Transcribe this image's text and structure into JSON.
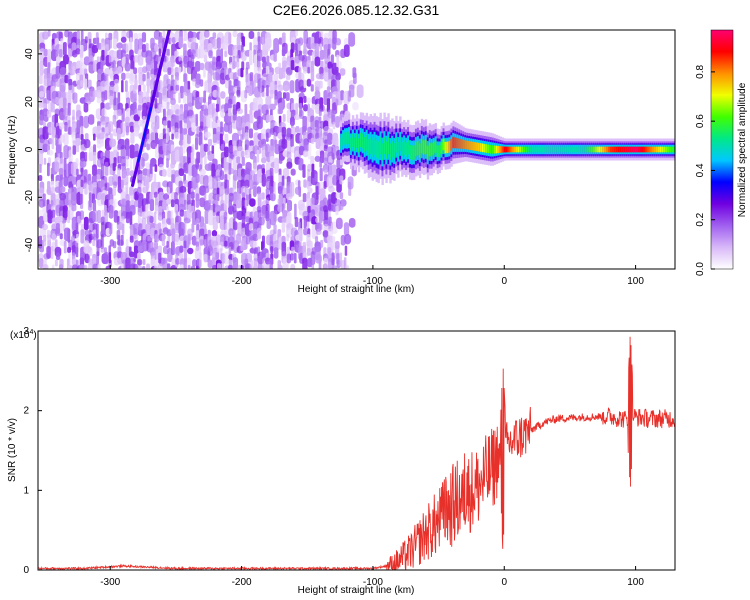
{
  "title": "C2E6.2026.085.12.32.G31",
  "colorbar": {
    "label": "Normalized spectral amplitude",
    "ticks": [
      "0.0",
      "0.2",
      "0.4",
      "0.6",
      "0.8"
    ],
    "tick_values": [
      0.0,
      0.2,
      0.4,
      0.6,
      0.8
    ],
    "range": [
      0,
      0.97
    ],
    "colors": [
      "#ffffff",
      "#d8b8f8",
      "#a060f0",
      "#7000e0",
      "#0000ff",
      "#00c8ff",
      "#00e888",
      "#40ff00",
      "#f0ff00",
      "#ff9000",
      "#ff0000",
      "#ff0070"
    ]
  },
  "chart_data": [
    {
      "type": "heatmap",
      "title": "C2E6.2026.085.12.32.G31",
      "xlabel": "Height of straight line (km)",
      "ylabel": "Frequency (Hz)",
      "xlim": [
        -355,
        130
      ],
      "ylim": [
        -50,
        50
      ],
      "xticks": [
        -300,
        -200,
        -100,
        0,
        100
      ],
      "xtick_labels": [
        "-300",
        "-200",
        "-100",
        "0",
        "100"
      ],
      "yticks": [
        -40,
        -20,
        0,
        20,
        40
      ],
      "ytick_labels": [
        "-40",
        "-20",
        "0",
        "20",
        "40"
      ],
      "noise_region_x": [
        -355,
        -110
      ],
      "diagonal_feature": {
        "x": [
          -283,
          -255
        ],
        "y": [
          -15,
          50
        ]
      },
      "band": {
        "x": [
          -125,
          -110,
          -100,
          -90,
          -80,
          -70,
          -60,
          -50,
          -40,
          -30,
          -20,
          -10,
          0,
          20,
          40,
          60,
          80,
          100,
          130
        ],
        "center_hz": [
          4,
          3,
          1,
          0,
          1,
          0,
          0,
          0,
          3,
          2,
          1,
          0,
          0,
          0,
          0,
          0,
          0,
          0,
          0
        ],
        "half_width_hz": [
          4,
          5,
          6,
          6,
          5,
          5,
          5,
          4,
          4,
          3,
          3,
          3,
          2,
          2,
          2,
          2,
          2,
          2,
          2
        ],
        "peak_amplitude": [
          0.5,
          0.55,
          0.5,
          0.55,
          0.5,
          0.55,
          0.6,
          0.55,
          0.85,
          0.8,
          0.75,
          0.6,
          0.9,
          0.5,
          0.5,
          0.5,
          0.85,
          0.95,
          0.55
        ]
      }
    },
    {
      "type": "line",
      "xlabel": "Height of straight line (km)",
      "ylabel": "SNR (10 * v/v)",
      "y_scale_label": "(x10",
      "y_scale_exponent": "4",
      "xlim": [
        -355,
        130
      ],
      "ylim": [
        0,
        3
      ],
      "xticks": [
        -300,
        -200,
        -100,
        0,
        100
      ],
      "xtick_labels": [
        "-300",
        "-200",
        "-100",
        "0",
        "100"
      ],
      "yticks": [
        0,
        1,
        2,
        3
      ],
      "ytick_labels": [
        "0",
        "1",
        "2",
        "3"
      ],
      "color": "#e8302a",
      "series": [
        {
          "name": "SNR",
          "x": [
            -355,
            -320,
            -290,
            -250,
            -200,
            -150,
            -120,
            -100,
            -90,
            -80,
            -70,
            -60,
            -50,
            -40,
            -30,
            -20,
            -10,
            -3,
            0,
            10,
            20,
            30,
            40,
            60,
            80,
            90,
            95,
            97,
            100,
            110,
            120,
            130
          ],
          "y": [
            0.02,
            0.02,
            0.05,
            0.02,
            0.02,
            0.02,
            0.02,
            0.02,
            0.05,
            0.12,
            0.25,
            0.45,
            0.6,
            0.8,
            0.95,
            1.05,
            1.25,
            1.45,
            1.55,
            1.65,
            1.75,
            1.85,
            1.9,
            1.92,
            1.93,
            1.9,
            1.88,
            1.95,
            1.92,
            1.9,
            1.9,
            1.9
          ]
        }
      ],
      "spikes": [
        {
          "x": -1,
          "peak": 2.6,
          "dip": 0.2
        },
        {
          "x": -30,
          "peak": 1.5,
          "dip": 0.55
        },
        {
          "x": -45,
          "peak": 1.25,
          "dip": 0.4
        },
        {
          "x": 96,
          "peak": 3.0,
          "dip": 1.0
        }
      ]
    }
  ]
}
